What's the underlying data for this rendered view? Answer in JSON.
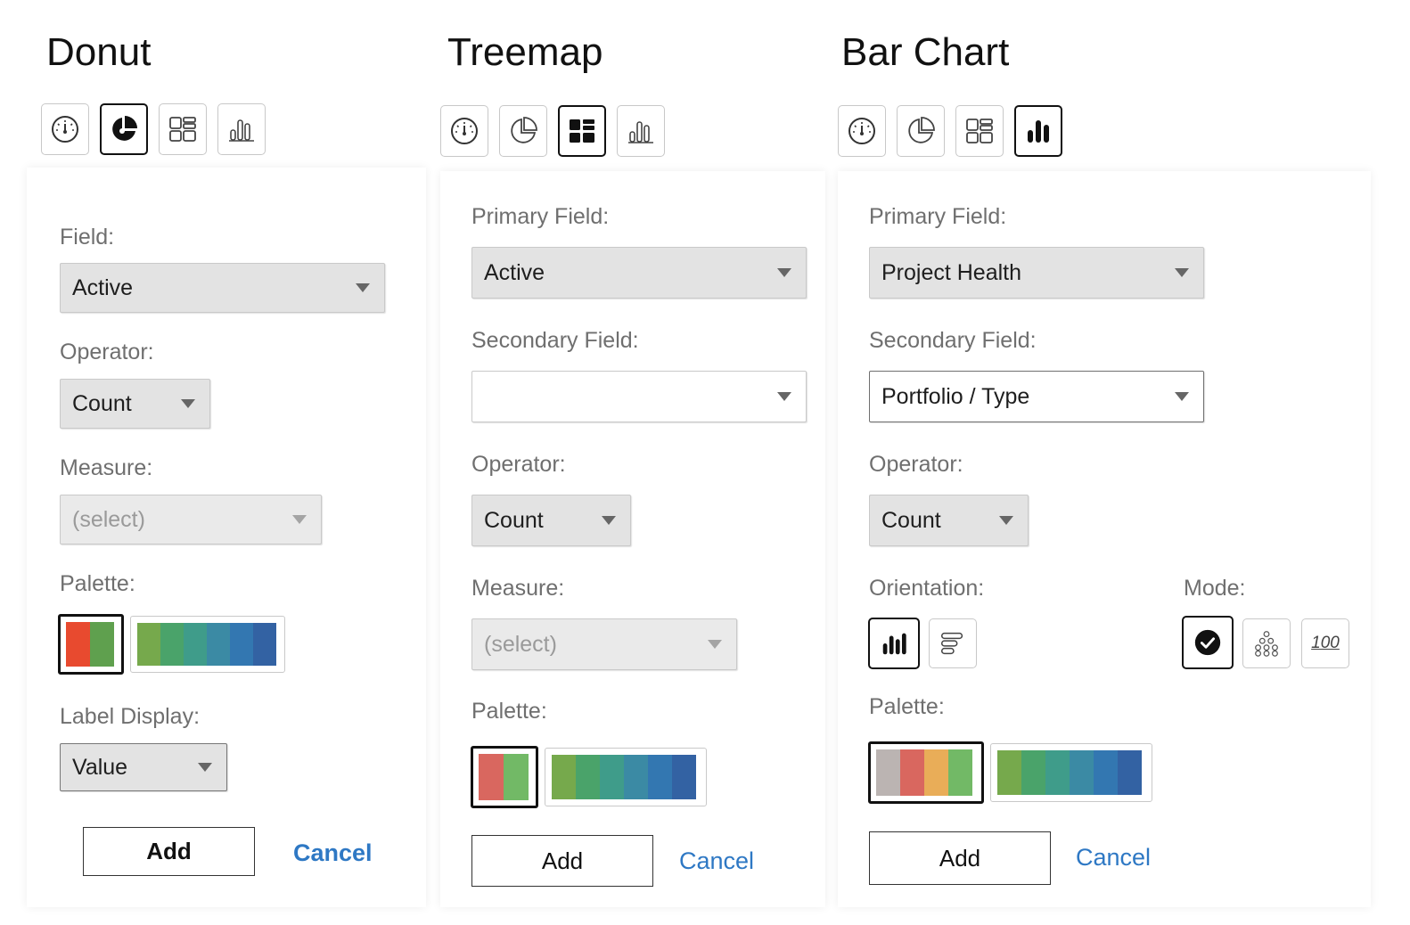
{
  "colors": {
    "accent_link": "#2e78c4",
    "palette_warm_2": [
      "#e84a2f",
      "#5fa04e"
    ],
    "palette_warm_2_light": [
      "#d9675f",
      "#72b966"
    ],
    "palette_warm_4": [
      "#bbb4b2",
      "#d9675f",
      "#e9ad58",
      "#72b966"
    ],
    "palette_sequence": [
      "#76a94c",
      "#4aa36a",
      "#3f9c8a",
      "#3b8aa4",
      "#3377b1",
      "#3362a3"
    ]
  },
  "donut": {
    "title": "Donut",
    "chart_types": [
      {
        "icon": "gauge-icon",
        "selected": false
      },
      {
        "icon": "pie-chart-icon",
        "selected": true
      },
      {
        "icon": "treemap-icon",
        "selected": false
      },
      {
        "icon": "bar-chart-icon",
        "selected": false
      }
    ],
    "field_label": "Field:",
    "field_value": "Active",
    "operator_label": "Operator:",
    "operator_value": "Count",
    "measure_label": "Measure:",
    "measure_value": "(select)",
    "palette_label": "Palette:",
    "label_display_label": "Label Display:",
    "label_display_value": "Value",
    "add_label": "Add",
    "cancel_label": "Cancel"
  },
  "treemap": {
    "title": "Treemap",
    "chart_types": [
      {
        "icon": "gauge-icon",
        "selected": false
      },
      {
        "icon": "pie-chart-icon",
        "selected": false
      },
      {
        "icon": "treemap-icon",
        "selected": true
      },
      {
        "icon": "bar-chart-icon",
        "selected": false
      }
    ],
    "primary_label": "Primary Field:",
    "primary_value": "Active",
    "secondary_label": "Secondary Field:",
    "secondary_value": "",
    "operator_label": "Operator:",
    "operator_value": "Count",
    "measure_label": "Measure:",
    "measure_value": "(select)",
    "palette_label": "Palette:",
    "add_label": "Add",
    "cancel_label": "Cancel"
  },
  "bar": {
    "title": "Bar Chart",
    "chart_types": [
      {
        "icon": "gauge-icon",
        "selected": false
      },
      {
        "icon": "pie-chart-icon",
        "selected": false
      },
      {
        "icon": "treemap-icon",
        "selected": false
      },
      {
        "icon": "bar-chart-icon",
        "selected": true
      }
    ],
    "primary_label": "Primary Field:",
    "primary_value": "Project Health",
    "secondary_label": "Secondary Field:",
    "secondary_value": "Portfolio / Type",
    "operator_label": "Operator:",
    "operator_value": "Count",
    "orientation_label": "Orientation:",
    "mode_label": "Mode:",
    "mode_percent_text": "100",
    "palette_label": "Palette:",
    "add_label": "Add",
    "cancel_label": "Cancel"
  }
}
